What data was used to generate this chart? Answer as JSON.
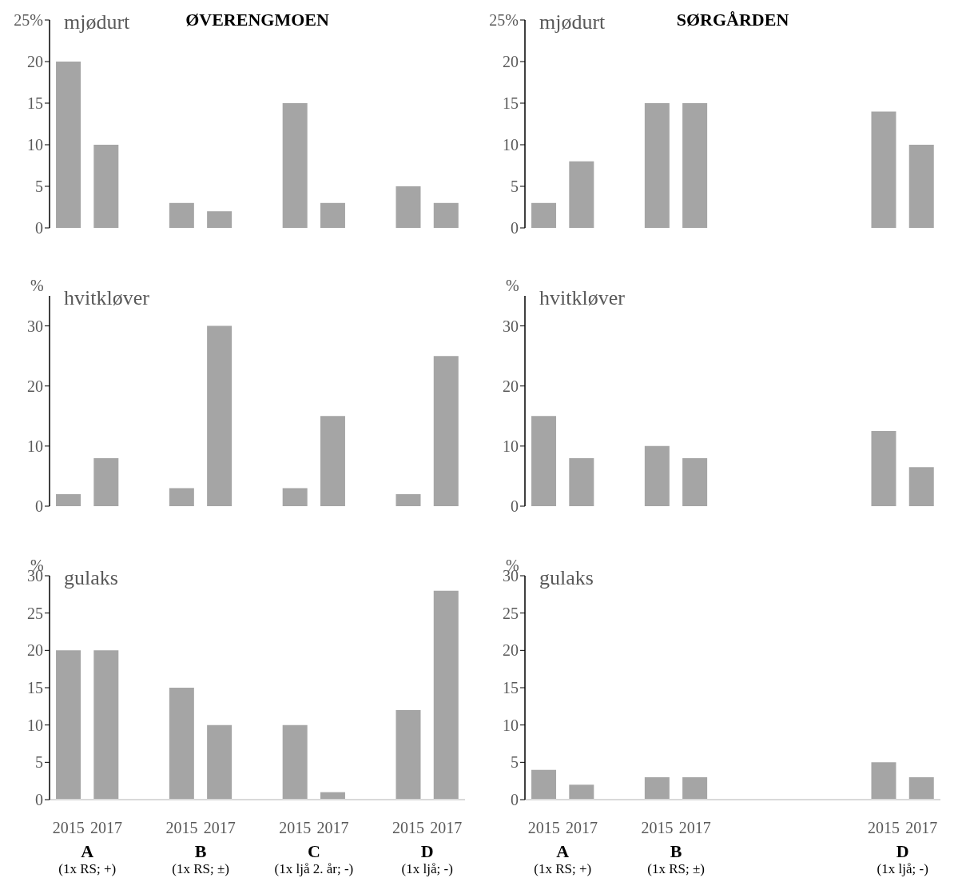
{
  "chart_data": [
    {
      "type": "bar",
      "title": "ØVERENGMOEN",
      "subtitle": "mjødurt",
      "categories": [
        "2015",
        "2017",
        null,
        "2015",
        "2017",
        null,
        "2015",
        "2017",
        null,
        "2015",
        "2017"
      ],
      "values": [
        20,
        10,
        null,
        3,
        2,
        null,
        15,
        3,
        null,
        5,
        3
      ],
      "color": "#a5a5a5",
      "ylim": [
        0,
        25
      ],
      "yticks": [
        0,
        5,
        10,
        15,
        20,
        {
          "value": 25,
          "label": "25%"
        }
      ],
      "grid": false,
      "legend": false,
      "tick_labels": "y"
    },
    {
      "type": "bar",
      "title": "SØRGÅRDEN",
      "subtitle": "mjødurt",
      "categories": [
        "2015",
        "2017",
        null,
        "2015",
        "2017",
        null,
        null,
        null,
        null,
        "2015",
        "2017"
      ],
      "values": [
        3,
        8,
        null,
        15,
        15,
        null,
        null,
        null,
        null,
        14,
        10
      ],
      "color": "#a5a5a5",
      "ylim": [
        0,
        25
      ],
      "yticks": [
        0,
        5,
        10,
        15,
        20,
        {
          "value": 25,
          "label": "25%"
        }
      ],
      "grid": false,
      "legend": false,
      "tick_labels": "y"
    },
    {
      "type": "bar",
      "subtitle": "hvitkløver",
      "ylabel": "%",
      "categories": [
        "2015",
        "2017",
        null,
        "2015",
        "2017",
        null,
        "2015",
        "2017",
        null,
        "2015",
        "2017"
      ],
      "values": [
        2,
        8,
        null,
        3,
        30,
        null,
        3,
        15,
        null,
        2,
        25
      ],
      "color": "#a5a5a5",
      "ylim": [
        0,
        35
      ],
      "yticks": [
        0,
        10,
        20,
        30
      ],
      "grid": false,
      "legend": false,
      "tick_labels": "y"
    },
    {
      "type": "bar",
      "subtitle": "hvitkløver",
      "ylabel": "%",
      "categories": [
        "2015",
        "2017",
        null,
        "2015",
        "2017",
        null,
        null,
        null,
        null,
        "2015",
        "2017"
      ],
      "values": [
        15,
        8,
        null,
        10,
        8,
        null,
        null,
        null,
        null,
        12.5,
        6.5
      ],
      "color": "#a5a5a5",
      "ylim": [
        0,
        35
      ],
      "yticks": [
        0,
        10,
        20,
        30
      ],
      "grid": false,
      "legend": false,
      "tick_labels": "y"
    },
    {
      "type": "bar",
      "subtitle": "gulaks",
      "ylabel": "%",
      "categories": [
        "2015",
        "2017",
        null,
        "2015",
        "2017",
        null,
        "2015",
        "2017",
        null,
        "2015",
        "2017"
      ],
      "values": [
        20,
        20,
        null,
        15,
        10,
        null,
        10,
        1,
        null,
        12,
        28
      ],
      "color": "#a5a5a5",
      "ylim": [
        0,
        30
      ],
      "yticks": [
        0,
        5,
        10,
        15,
        20,
        25,
        30
      ],
      "grid": false,
      "legend": false,
      "annotations": [
        "A\n(1x RS; +)",
        "B\n(1x RS; ±)",
        "C\n(1x ljå 2. år; -)",
        "D\n(1x ljå; -)"
      ]
    },
    {
      "type": "bar",
      "subtitle": "gulaks",
      "ylabel": "%",
      "categories": [
        "2015",
        "2017",
        null,
        "2015",
        "2017",
        null,
        null,
        null,
        null,
        "2015",
        "2017"
      ],
      "values": [
        4,
        2,
        null,
        3,
        3,
        null,
        null,
        null,
        null,
        5,
        3
      ],
      "color": "#a5a5a5",
      "ylim": [
        0,
        30
      ],
      "yticks": [
        0,
        5,
        10,
        15,
        20,
        25,
        30
      ],
      "grid": false,
      "legend": false,
      "annotations": [
        "A\n(1x RS; +)",
        "B\n(1x RS; ±)",
        "D\n(1x ljå; -)"
      ]
    }
  ]
}
